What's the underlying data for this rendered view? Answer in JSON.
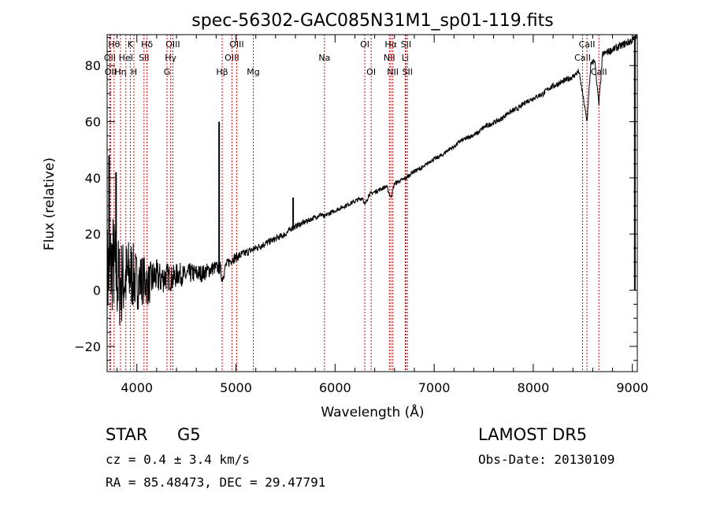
{
  "chart_data": {
    "type": "line",
    "title": "spec-56302-GAC085N31M1_sp01-119.fits",
    "xlabel": "Wavelength (Å)",
    "ylabel": "Flux (relative)",
    "xlim": [
      3700,
      9050
    ],
    "ylim": [
      -29,
      91
    ],
    "x_ticks": [
      4000,
      5000,
      6000,
      7000,
      8000,
      9000
    ],
    "y_ticks": [
      -20,
      0,
      20,
      40,
      60,
      80
    ],
    "grid": false,
    "series": [
      {
        "x": [
          3700,
          3760,
          3820,
          3880,
          3940,
          4000,
          4060,
          4120,
          4180,
          4240,
          4300,
          4360,
          4420,
          4480,
          4540,
          4600,
          4660,
          4720,
          4780,
          4840,
          4861,
          4900,
          4960,
          5020,
          5080,
          5140,
          5200,
          5260,
          5320,
          5380,
          5440,
          5500,
          5560,
          5620,
          5680,
          5740,
          5800,
          5860,
          5893,
          5920,
          5980,
          6040,
          6100,
          6160,
          6220,
          6280,
          6300,
          6340,
          6400,
          6460,
          6520,
          6563,
          6600,
          6660,
          6720,
          6780,
          6840,
          6900,
          6960,
          7020,
          7080,
          7140,
          7200,
          7260,
          7320,
          7380,
          7440,
          7500,
          7560,
          7620,
          7680,
          7740,
          7800,
          7860,
          7920,
          7980,
          8040,
          8100,
          8160,
          8220,
          8280,
          8340,
          8400,
          8460,
          8498,
          8542,
          8580,
          8620,
          8662,
          8700,
          8760,
          8820,
          8880,
          8940,
          9000,
          9040
        ],
        "y": [
          5,
          10,
          2,
          4,
          6,
          3,
          4,
          2,
          5,
          4,
          5,
          4,
          6,
          5,
          6,
          6,
          6,
          7,
          8,
          8,
          4,
          9,
          11,
          12,
          13,
          14,
          15,
          16,
          17,
          18,
          19,
          20,
          22,
          23,
          24,
          25,
          26,
          27,
          26,
          27,
          28,
          29,
          30,
          31,
          32,
          33,
          30,
          34,
          35,
          36,
          37,
          33,
          38,
          39,
          40,
          42,
          43,
          44,
          46,
          47,
          48,
          50,
          51,
          53,
          54,
          55,
          56,
          58,
          59,
          60,
          61,
          63,
          64,
          65,
          67,
          68,
          69,
          70,
          72,
          73,
          74,
          75,
          76,
          78,
          70,
          60,
          80,
          82,
          66,
          84,
          85,
          86,
          87,
          88,
          89,
          90
        ],
        "noise": [
          15,
          14,
          13,
          11,
          10,
          8,
          7,
          6,
          5,
          4.5,
          4,
          3.5,
          3.2,
          3,
          2.8,
          2.6,
          2.4,
          2.2,
          2,
          1.8,
          1.6,
          1.5,
          1.4,
          1.3,
          1.2,
          1.1,
          1,
          1,
          1,
          0.9,
          0.9,
          0.9,
          0.8,
          0.8,
          0.8,
          0.7,
          0.7,
          0.7,
          0.7,
          0.7,
          0.6,
          0.6,
          0.6,
          0.6,
          0.6,
          0.6,
          0.6,
          0.6,
          0.6,
          0.6,
          0.6,
          0.6,
          0.6,
          0.6,
          0.6,
          0.6,
          0.6,
          0.6,
          0.6,
          0.6,
          0.6,
          0.6,
          0.6,
          0.6,
          0.6,
          0.6,
          0.7,
          0.7,
          0.7,
          0.7,
          0.7,
          0.7,
          0.7,
          0.7,
          0.7,
          0.7,
          0.7,
          0.8,
          0.8,
          0.8,
          0.8,
          0.8,
          0.8,
          0.8,
          0.8,
          0.8,
          0.9,
          0.9,
          0.9,
          0.9,
          1,
          1,
          1,
          1.1,
          1.2,
          1.2
        ],
        "spikes": [
          {
            "x": 4830,
            "y": 60
          },
          {
            "x": 5577,
            "y": 33
          },
          {
            "x": 9025,
            "y": 90
          },
          {
            "x": 9025,
            "y": 0
          },
          {
            "x": 3790,
            "y": 42
          },
          {
            "x": 3720,
            "y": 48
          }
        ],
        "color": "#000000"
      }
    ],
    "line_markers": [
      {
        "x": 3770,
        "label": "Hθ",
        "row": 0
      },
      {
        "x": 3727,
        "label": "OII",
        "row": 1
      },
      {
        "x": 3734,
        "label": "OII",
        "row": 2
      },
      {
        "x": 3835,
        "label": "Hη",
        "row": 2
      },
      {
        "x": 3889,
        "label": "HeI",
        "row": 1
      },
      {
        "x": 3934,
        "label": "K",
        "row": 0
      },
      {
        "x": 3970,
        "label": "H",
        "row": 2
      },
      {
        "x": 4072,
        "label": "SII",
        "row": 1
      },
      {
        "x": 4102,
        "label": "Hδ",
        "row": 0
      },
      {
        "x": 4304,
        "label": "G",
        "row": 2
      },
      {
        "x": 4341,
        "label": "Hγ",
        "row": 1
      },
      {
        "x": 4363,
        "label": "OIII",
        "row": 0
      },
      {
        "x": 4861,
        "label": "Hβ",
        "row": 2
      },
      {
        "x": 4959,
        "label": "OIII",
        "row": 1
      },
      {
        "x": 5007,
        "label": "OIII",
        "row": 0
      },
      {
        "x": 5175,
        "label": "Mg",
        "row": 2
      },
      {
        "x": 5893,
        "label": "Na",
        "row": 1
      },
      {
        "x": 6300,
        "label": "OI",
        "row": 0
      },
      {
        "x": 6364,
        "label": "OI",
        "row": 2
      },
      {
        "x": 6548,
        "label": "NII",
        "row": 1
      },
      {
        "x": 6563,
        "label": "Hα",
        "row": 0
      },
      {
        "x": 6583,
        "label": "NII",
        "row": 2
      },
      {
        "x": 6708,
        "label": "Li",
        "row": 1
      },
      {
        "x": 6716,
        "label": "SII",
        "row": 0
      },
      {
        "x": 6731,
        "label": "SII",
        "row": 2
      },
      {
        "x": 8498,
        "label": "CaII",
        "row": 1
      },
      {
        "x": 8542,
        "label": "CaII",
        "row": 0
      },
      {
        "x": 8662,
        "label": "CaII",
        "row": 2
      }
    ]
  },
  "info": {
    "object_class": "STAR",
    "subclass": "G5",
    "redshift": "cz = 0.4 ± 3.4 km/s",
    "coords": "RA =  85.48473, DEC =  29.47791",
    "survey": "LAMOST DR5",
    "obs_date": "Obs-Date: 20130109"
  }
}
